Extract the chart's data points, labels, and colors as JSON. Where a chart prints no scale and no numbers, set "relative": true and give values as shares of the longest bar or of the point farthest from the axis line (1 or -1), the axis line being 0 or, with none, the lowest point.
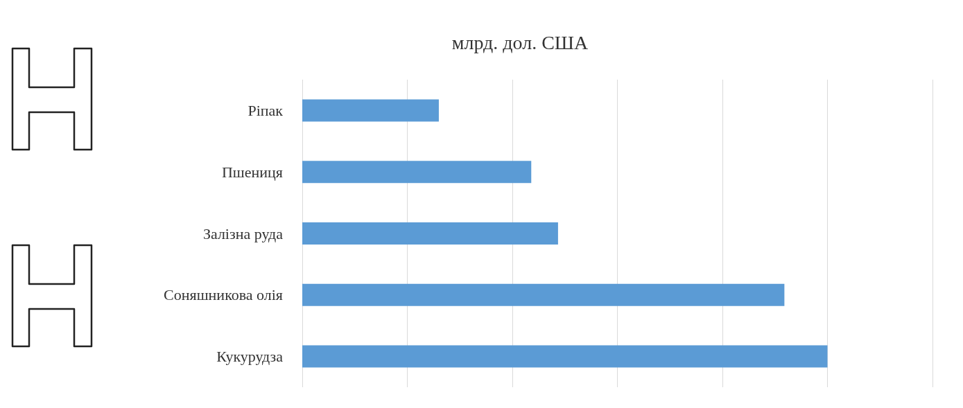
{
  "chart_data": {
    "type": "bar",
    "orientation": "horizontal",
    "relative": true,
    "title": "млрд. дол. США",
    "categories": [
      "Ріпак",
      "Пшениця",
      "Залізна руда",
      "Соняшникова олія",
      "Кукурудза"
    ],
    "values": [
      0.26,
      0.436,
      0.487,
      0.918,
      1
    ],
    "color": "#5b9bd5",
    "grid": "x"
  }
}
